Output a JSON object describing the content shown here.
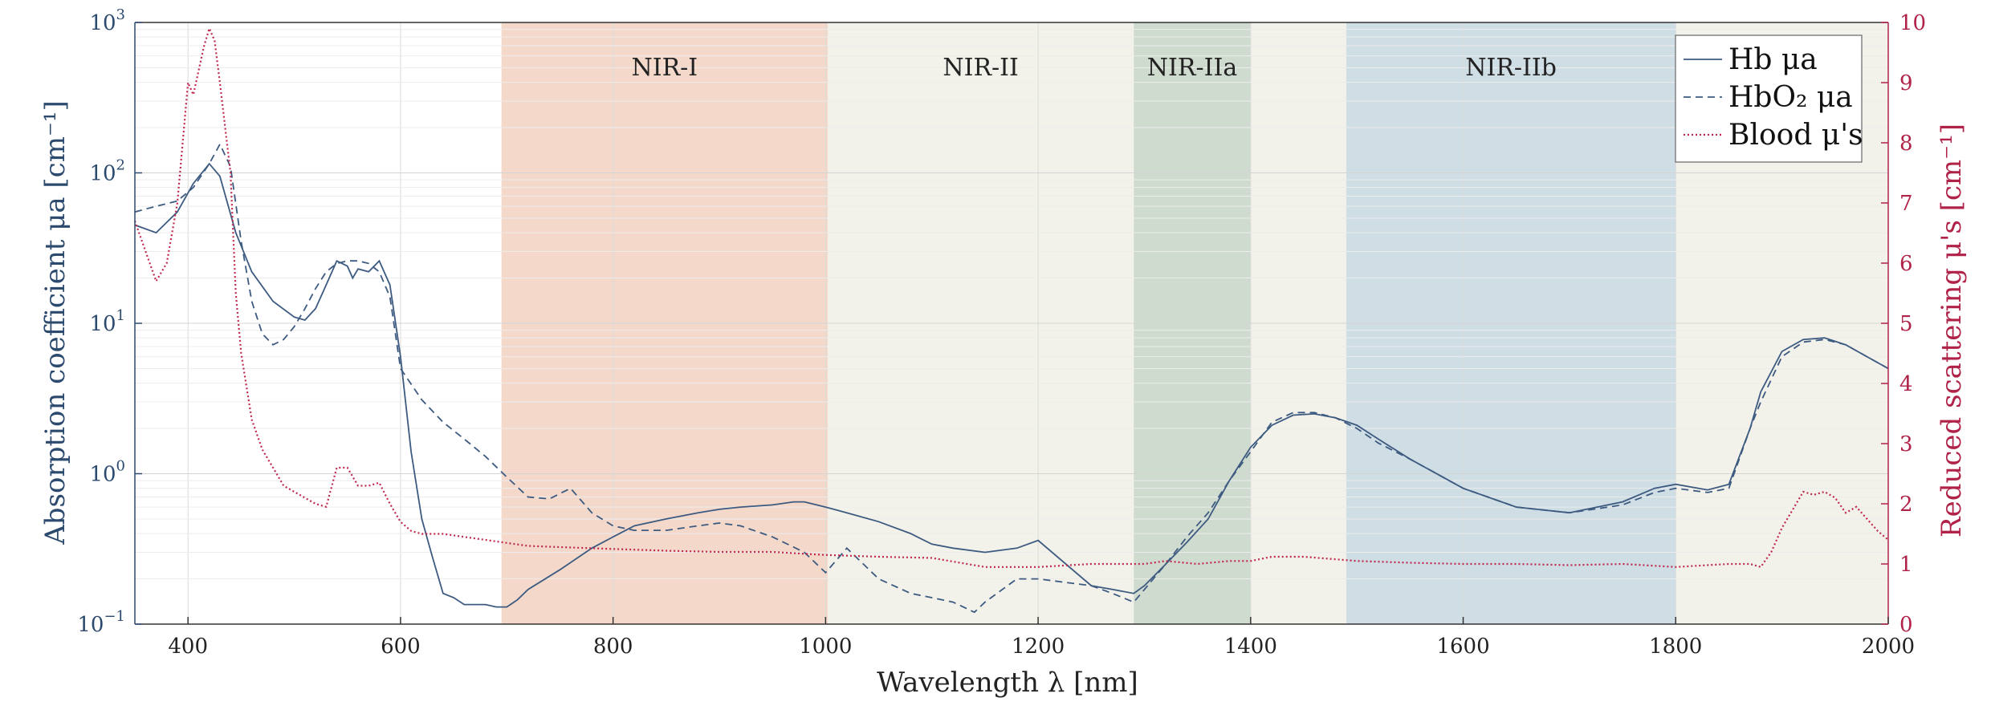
{
  "chart_data": {
    "type": "line",
    "xlabel": "Wavelength λ [nm]",
    "ylabel_left": "Absorption coefficient μa [cm⁻¹]",
    "ylabel_right": "Reduced scattering μ's [cm⁻¹]",
    "xlim": [
      350,
      2000
    ],
    "ylim_left": [
      0.1,
      1000
    ],
    "ylim_right": [
      0,
      10
    ],
    "yscale_left": "log",
    "grid": true,
    "x_ticks": [
      400,
      600,
      800,
      1000,
      1200,
      1400,
      1600,
      1800,
      2000
    ],
    "y_left_ticks": [
      {
        "value": 1000,
        "mantissa": "10",
        "exp": "3"
      },
      {
        "value": 100,
        "mantissa": "10",
        "exp": "2"
      },
      {
        "value": 10,
        "mantissa": "10",
        "exp": "1"
      },
      {
        "value": 1,
        "mantissa": "10",
        "exp": "0"
      },
      {
        "value": 0.1,
        "mantissa": "10",
        "exp": "−1"
      }
    ],
    "y_right_ticks": [
      0,
      1,
      2,
      3,
      4,
      5,
      6,
      7,
      8,
      9,
      10
    ],
    "bands": [
      {
        "label": "NIR-I",
        "x0": 695,
        "x1": 1002,
        "color": "#f4d9cb"
      },
      {
        "label": "NIR-II",
        "x0": 1002,
        "x1": 1290,
        "color": "#f2f2ea"
      },
      {
        "label": "NIR-IIa",
        "x0": 1290,
        "x1": 1400,
        "color": "#d0dbd0"
      },
      {
        "label": "",
        "x0": 1400,
        "x1": 1490,
        "color": "#f2f2ea"
      },
      {
        "label": "NIR-IIb",
        "x0": 1490,
        "x1": 1800,
        "color": "#cfdde5"
      },
      {
        "label": "",
        "x0": 1800,
        "x1": 2000,
        "color": "#f2f2ea"
      }
    ],
    "legend_position": "top-right",
    "series": [
      {
        "name": "Hb μa",
        "axis": "left",
        "color": "#3d5a80",
        "dash": "solid",
        "x": [
          350,
          370,
          390,
          405,
          420,
          430,
          445,
          460,
          480,
          500,
          510,
          520,
          530,
          540,
          550,
          555,
          560,
          570,
          580,
          590,
          600,
          610,
          620,
          630,
          640,
          650,
          660,
          670,
          680,
          690,
          700,
          710,
          720,
          750,
          780,
          800,
          820,
          850,
          880,
          900,
          920,
          950,
          970,
          980,
          1000,
          1020,
          1050,
          1080,
          1100,
          1120,
          1150,
          1180,
          1200,
          1250,
          1270,
          1290,
          1300,
          1320,
          1340,
          1360,
          1380,
          1400,
          1420,
          1440,
          1460,
          1480,
          1500,
          1520,
          1550,
          1600,
          1650,
          1700,
          1750,
          1780,
          1800,
          1830,
          1850,
          1870,
          1880,
          1900,
          1920,
          1940,
          1960,
          1980,
          2000
        ],
        "y": [
          45,
          40,
          55,
          85,
          115,
          95,
          40,
          22,
          14,
          11,
          10.5,
          12.5,
          18,
          26,
          24,
          20,
          23,
          22,
          26,
          18,
          6,
          1.4,
          0.5,
          0.28,
          0.16,
          0.15,
          0.135,
          0.135,
          0.135,
          0.13,
          0.13,
          0.145,
          0.17,
          0.23,
          0.32,
          0.38,
          0.45,
          0.5,
          0.55,
          0.58,
          0.6,
          0.62,
          0.65,
          0.65,
          0.6,
          0.55,
          0.48,
          0.4,
          0.34,
          0.32,
          0.3,
          0.32,
          0.36,
          0.18,
          0.17,
          0.16,
          0.18,
          0.25,
          0.35,
          0.5,
          0.9,
          1.5,
          2.1,
          2.45,
          2.5,
          2.35,
          2.1,
          1.7,
          1.25,
          0.8,
          0.6,
          0.55,
          0.65,
          0.8,
          0.85,
          0.78,
          0.85,
          2.0,
          3.5,
          6.5,
          7.8,
          8.0,
          7.2,
          6.0,
          5.0
        ]
      },
      {
        "name": "HbO₂ μa",
        "axis": "left",
        "color": "#3d5a80",
        "dash": "dashed",
        "x": [
          350,
          370,
          390,
          405,
          420,
          430,
          440,
          450,
          460,
          470,
          480,
          490,
          500,
          510,
          520,
          530,
          540,
          550,
          560,
          570,
          580,
          590,
          600,
          620,
          640,
          660,
          680,
          700,
          720,
          740,
          760,
          780,
          800,
          820,
          850,
          880,
          900,
          920,
          950,
          980,
          1000,
          1020,
          1050,
          1080,
          1100,
          1120,
          1140,
          1150,
          1180,
          1200,
          1250,
          1270,
          1290,
          1300,
          1320,
          1340,
          1360,
          1380,
          1400,
          1420,
          1440,
          1460,
          1480,
          1500,
          1520,
          1550,
          1600,
          1650,
          1700,
          1750,
          1780,
          1800,
          1830,
          1850,
          1870,
          1880,
          1900,
          1920,
          1940,
          1960,
          1980,
          2000
        ],
        "y": [
          55,
          60,
          65,
          80,
          115,
          155,
          110,
          35,
          14,
          8.5,
          7.2,
          7.8,
          9.5,
          12.5,
          17,
          22,
          25,
          26,
          26,
          25,
          22,
          15,
          5,
          3.1,
          2.2,
          1.7,
          1.3,
          0.95,
          0.7,
          0.68,
          0.8,
          0.55,
          0.45,
          0.42,
          0.42,
          0.45,
          0.47,
          0.45,
          0.38,
          0.3,
          0.22,
          0.32,
          0.2,
          0.16,
          0.15,
          0.14,
          0.12,
          0.14,
          0.2,
          0.2,
          0.18,
          0.16,
          0.14,
          0.17,
          0.25,
          0.38,
          0.55,
          0.9,
          1.4,
          2.2,
          2.55,
          2.55,
          2.35,
          2.0,
          1.6,
          1.25,
          0.8,
          0.6,
          0.55,
          0.62,
          0.75,
          0.8,
          0.75,
          0.8,
          2.0,
          3.0,
          6.0,
          7.5,
          7.8,
          7.2,
          6.0,
          5.0
        ]
      },
      {
        "name": "Blood μ's",
        "axis": "right",
        "color": "#c0284e",
        "dash": "dotted",
        "x": [
          350,
          360,
          370,
          380,
          390,
          400,
          405,
          410,
          415,
          420,
          425,
          430,
          440,
          445,
          450,
          460,
          470,
          480,
          490,
          500,
          510,
          520,
          530,
          540,
          550,
          560,
          570,
          580,
          590,
          600,
          610,
          620,
          640,
          660,
          680,
          700,
          720,
          750,
          800,
          850,
          900,
          950,
          1000,
          1050,
          1100,
          1150,
          1200,
          1250,
          1300,
          1320,
          1350,
          1380,
          1400,
          1420,
          1450,
          1500,
          1550,
          1600,
          1650,
          1700,
          1750,
          1800,
          1830,
          1850,
          1870,
          1880,
          1890,
          1900,
          1910,
          1920,
          1930,
          1940,
          1950,
          1960,
          1970,
          1980,
          1990,
          2000
        ],
        "y": [
          6.7,
          6.2,
          5.7,
          6.0,
          7.0,
          9.0,
          8.8,
          9.2,
          9.6,
          9.9,
          9.7,
          9.0,
          7.5,
          5.5,
          4.5,
          3.4,
          2.9,
          2.6,
          2.3,
          2.2,
          2.1,
          2.0,
          1.95,
          2.6,
          2.6,
          2.3,
          2.3,
          2.35,
          2.0,
          1.7,
          1.55,
          1.5,
          1.5,
          1.45,
          1.4,
          1.35,
          1.3,
          1.28,
          1.25,
          1.22,
          1.2,
          1.2,
          1.15,
          1.12,
          1.1,
          0.95,
          0.95,
          1.0,
          1.0,
          1.05,
          1.0,
          1.05,
          1.05,
          1.12,
          1.12,
          1.05,
          1.02,
          1.0,
          1.0,
          0.98,
          1.0,
          0.95,
          0.98,
          1.0,
          1.0,
          0.95,
          1.2,
          1.6,
          1.9,
          2.2,
          2.15,
          2.2,
          2.1,
          1.85,
          1.95,
          1.75,
          1.55,
          1.4
        ]
      }
    ]
  }
}
